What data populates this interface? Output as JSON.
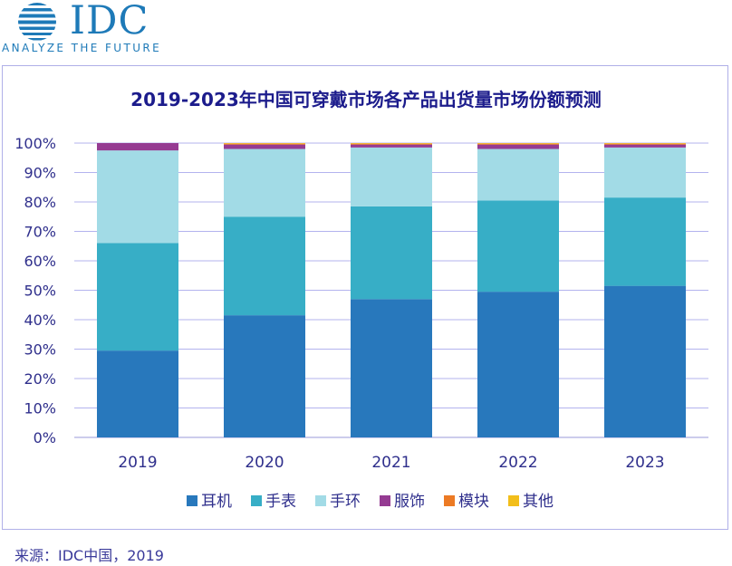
{
  "logo": {
    "name": "IDC",
    "tagline": "ANALYZE THE FUTURE"
  },
  "source": "来源：IDC中国，2019",
  "colors": {
    "耳机": "#2878bc",
    "手表": "#37aec6",
    "手环": "#a2dbe6",
    "服饰": "#953b92",
    "模块": "#ec7a24",
    "其他": "#f2be1a"
  },
  "chart_data": {
    "type": "bar",
    "stacked": true,
    "title": "2019-2023年中国可穿戴市场各产品出货量市场份额预测",
    "categories": [
      "2019",
      "2020",
      "2021",
      "2022",
      "2023"
    ],
    "series": [
      {
        "name": "耳机",
        "values": [
          29.5,
          41.5,
          47,
          49.5,
          51.5
        ]
      },
      {
        "name": "手表",
        "values": [
          36.5,
          33.5,
          31.5,
          31,
          30
        ]
      },
      {
        "name": "手环",
        "values": [
          31.5,
          23,
          20,
          17.5,
          17
        ]
      },
      {
        "name": "服饰",
        "values": [
          2.5,
          1.5,
          1,
          1.5,
          1
        ]
      },
      {
        "name": "模块",
        "values": [
          0,
          0.3,
          0.3,
          0.3,
          0.3
        ]
      },
      {
        "name": "其他",
        "values": [
          0,
          0.2,
          0.2,
          0.2,
          0.2
        ]
      }
    ],
    "y_ticks": [
      "0%",
      "10%",
      "20%",
      "30%",
      "40%",
      "50%",
      "60%",
      "70%",
      "80%",
      "90%",
      "100%"
    ],
    "ylim": [
      0,
      100
    ],
    "grid": true,
    "legend_position": "bottom"
  }
}
